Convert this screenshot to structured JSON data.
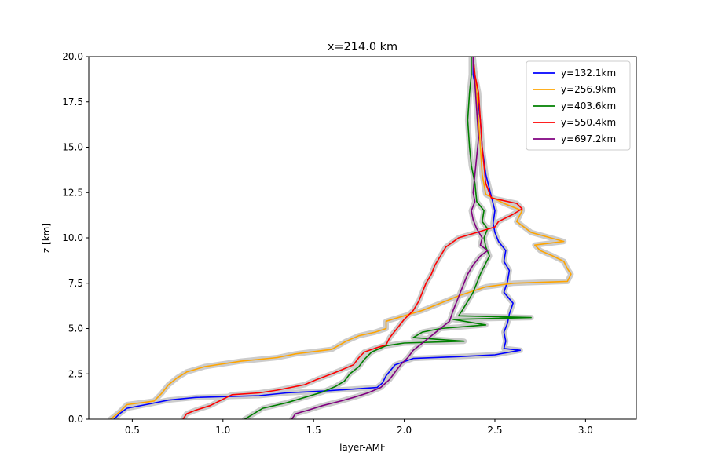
{
  "chart_data": {
    "type": "line",
    "title": "x=214.0 km",
    "xlabel": "layer-AMF",
    "ylabel": "z [km]",
    "xlim": [
      0.26,
      3.28
    ],
    "ylim": [
      0,
      20
    ],
    "xticks": [
      0.5,
      1.0,
      1.5,
      2.0,
      2.5,
      3.0
    ],
    "xtick_labels": [
      "0.5",
      "1.0",
      "1.5",
      "2.0",
      "2.5",
      "3.0"
    ],
    "yticks": [
      0,
      2.5,
      5,
      7.5,
      10,
      12.5,
      15,
      17.5,
      20
    ],
    "ytick_labels": [
      "0.0",
      "2.5",
      "5.0",
      "7.5",
      "10.0",
      "12.5",
      "15.0",
      "17.5",
      "20.0"
    ],
    "grid": false,
    "legend_position": "top-right",
    "uncertainty_band_color": "#cccccc",
    "series": [
      {
        "name": "y=132.1km",
        "color": "#0000ff",
        "points": [
          [
            0.4,
            0
          ],
          [
            0.43,
            0.3
          ],
          [
            0.47,
            0.6
          ],
          [
            0.6,
            0.85
          ],
          [
            0.7,
            1.05
          ],
          [
            0.85,
            1.2
          ],
          [
            1.2,
            1.3
          ],
          [
            1.35,
            1.45
          ],
          [
            1.55,
            1.55
          ],
          [
            1.7,
            1.65
          ],
          [
            1.85,
            1.75
          ],
          [
            1.88,
            2.0
          ],
          [
            1.9,
            2.4
          ],
          [
            1.95,
            3.0
          ],
          [
            2.05,
            3.35
          ],
          [
            2.3,
            3.45
          ],
          [
            2.5,
            3.55
          ],
          [
            2.64,
            3.8
          ],
          [
            2.55,
            3.9
          ],
          [
            2.56,
            4.3
          ],
          [
            2.55,
            4.8
          ],
          [
            2.57,
            5.3
          ],
          [
            2.58,
            5.8
          ],
          [
            2.6,
            6.4
          ],
          [
            2.55,
            7.0
          ],
          [
            2.57,
            7.6
          ],
          [
            2.58,
            8.2
          ],
          [
            2.55,
            8.7
          ],
          [
            2.56,
            9.3
          ],
          [
            2.52,
            9.8
          ],
          [
            2.5,
            10.3
          ],
          [
            2.49,
            10.8
          ],
          [
            2.5,
            11.5
          ],
          [
            2.48,
            12.3
          ],
          [
            2.45,
            13.5
          ],
          [
            2.43,
            15.0
          ],
          [
            2.42,
            16.5
          ],
          [
            2.4,
            18.0
          ],
          [
            2.38,
            19.0
          ],
          [
            2.38,
            20.0
          ]
        ]
      },
      {
        "name": "y=256.9km",
        "color": "#ffa500",
        "points": [
          [
            0.38,
            0
          ],
          [
            0.43,
            0.4
          ],
          [
            0.47,
            0.8
          ],
          [
            0.62,
            1.0
          ],
          [
            0.66,
            1.4
          ],
          [
            0.7,
            1.9
          ],
          [
            0.75,
            2.3
          ],
          [
            0.8,
            2.6
          ],
          [
            0.9,
            2.9
          ],
          [
            1.1,
            3.2
          ],
          [
            1.3,
            3.4
          ],
          [
            1.4,
            3.6
          ],
          [
            1.6,
            3.85
          ],
          [
            1.68,
            4.3
          ],
          [
            1.75,
            4.6
          ],
          [
            1.84,
            4.8
          ],
          [
            1.9,
            5.0
          ],
          [
            1.9,
            5.4
          ],
          [
            2.0,
            5.7
          ],
          [
            2.1,
            6.0
          ],
          [
            2.2,
            6.4
          ],
          [
            2.3,
            6.8
          ],
          [
            2.45,
            7.3
          ],
          [
            2.6,
            7.5
          ],
          [
            2.9,
            7.6
          ],
          [
            2.92,
            8.0
          ],
          [
            2.9,
            8.3
          ],
          [
            2.88,
            8.7
          ],
          [
            2.82,
            9.0
          ],
          [
            2.75,
            9.3
          ],
          [
            2.72,
            9.6
          ],
          [
            2.88,
            9.8
          ],
          [
            2.7,
            10.3
          ],
          [
            2.62,
            10.9
          ],
          [
            2.65,
            11.5
          ],
          [
            2.55,
            11.9
          ],
          [
            2.45,
            12.4
          ],
          [
            2.43,
            13.5
          ],
          [
            2.42,
            15.0
          ],
          [
            2.41,
            16.5
          ],
          [
            2.4,
            18.0
          ],
          [
            2.39,
            19.0
          ],
          [
            2.38,
            20.0
          ]
        ]
      },
      {
        "name": "y=403.6km",
        "color": "#008000",
        "points": [
          [
            1.12,
            0
          ],
          [
            1.17,
            0.3
          ],
          [
            1.22,
            0.6
          ],
          [
            1.35,
            0.9
          ],
          [
            1.45,
            1.2
          ],
          [
            1.55,
            1.5
          ],
          [
            1.62,
            1.8
          ],
          [
            1.67,
            2.1
          ],
          [
            1.7,
            2.5
          ],
          [
            1.75,
            2.9
          ],
          [
            1.78,
            3.3
          ],
          [
            1.82,
            3.7
          ],
          [
            1.9,
            4.05
          ],
          [
            2.0,
            4.2
          ],
          [
            2.33,
            4.3
          ],
          [
            2.05,
            4.5
          ],
          [
            2.1,
            4.8
          ],
          [
            2.2,
            5.0
          ],
          [
            2.45,
            5.2
          ],
          [
            2.27,
            5.5
          ],
          [
            2.7,
            5.6
          ],
          [
            2.3,
            5.7
          ],
          [
            2.32,
            6.0
          ],
          [
            2.35,
            6.5
          ],
          [
            2.38,
            7.0
          ],
          [
            2.4,
            7.5
          ],
          [
            2.42,
            8.0
          ],
          [
            2.45,
            8.6
          ],
          [
            2.47,
            9.0
          ],
          [
            2.45,
            9.5
          ],
          [
            2.44,
            10.0
          ],
          [
            2.46,
            10.5
          ],
          [
            2.43,
            10.9
          ],
          [
            2.44,
            11.5
          ],
          [
            2.4,
            12.0
          ],
          [
            2.39,
            13.0
          ],
          [
            2.37,
            14.0
          ],
          [
            2.36,
            15.0
          ],
          [
            2.35,
            16.5
          ],
          [
            2.36,
            18.0
          ],
          [
            2.37,
            19.0
          ],
          [
            2.37,
            20.0
          ]
        ]
      },
      {
        "name": "y=550.4km",
        "color": "#ff0000",
        "points": [
          [
            0.78,
            0
          ],
          [
            0.8,
            0.3
          ],
          [
            0.85,
            0.5
          ],
          [
            0.93,
            0.75
          ],
          [
            1.0,
            1.1
          ],
          [
            1.05,
            1.35
          ],
          [
            1.2,
            1.45
          ],
          [
            1.3,
            1.6
          ],
          [
            1.45,
            1.9
          ],
          [
            1.52,
            2.2
          ],
          [
            1.6,
            2.5
          ],
          [
            1.65,
            2.7
          ],
          [
            1.72,
            3.0
          ],
          [
            1.75,
            3.4
          ],
          [
            1.78,
            3.7
          ],
          [
            1.85,
            3.95
          ],
          [
            1.9,
            4.1
          ],
          [
            1.92,
            4.5
          ],
          [
            1.96,
            5.0
          ],
          [
            2.0,
            5.5
          ],
          [
            2.05,
            6.0
          ],
          [
            2.08,
            6.5
          ],
          [
            2.1,
            7.0
          ],
          [
            2.12,
            7.5
          ],
          [
            2.15,
            8.0
          ],
          [
            2.17,
            8.5
          ],
          [
            2.2,
            9.0
          ],
          [
            2.23,
            9.5
          ],
          [
            2.3,
            10.0
          ],
          [
            2.4,
            10.3
          ],
          [
            2.5,
            10.6
          ],
          [
            2.52,
            10.9
          ],
          [
            2.6,
            11.3
          ],
          [
            2.65,
            11.6
          ],
          [
            2.62,
            11.9
          ],
          [
            2.48,
            12.2
          ],
          [
            2.45,
            13.0
          ],
          [
            2.44,
            14.0
          ],
          [
            2.43,
            15.0
          ],
          [
            2.42,
            16.5
          ],
          [
            2.41,
            18.0
          ],
          [
            2.39,
            19.0
          ],
          [
            2.38,
            20.0
          ]
        ]
      },
      {
        "name": "y=697.2km",
        "color": "#800080",
        "points": [
          [
            1.38,
            0
          ],
          [
            1.4,
            0.3
          ],
          [
            1.47,
            0.5
          ],
          [
            1.55,
            0.75
          ],
          [
            1.65,
            1.0
          ],
          [
            1.72,
            1.2
          ],
          [
            1.8,
            1.45
          ],
          [
            1.87,
            1.75
          ],
          [
            1.92,
            2.2
          ],
          [
            1.95,
            2.6
          ],
          [
            1.98,
            3.0
          ],
          [
            2.02,
            3.4
          ],
          [
            2.05,
            3.8
          ],
          [
            2.1,
            4.2
          ],
          [
            2.15,
            4.6
          ],
          [
            2.2,
            5.0
          ],
          [
            2.25,
            5.4
          ],
          [
            2.27,
            6.0
          ],
          [
            2.29,
            6.5
          ],
          [
            2.31,
            7.0
          ],
          [
            2.33,
            7.5
          ],
          [
            2.35,
            8.0
          ],
          [
            2.38,
            8.5
          ],
          [
            2.42,
            9.0
          ],
          [
            2.46,
            9.3
          ],
          [
            2.42,
            9.6
          ],
          [
            2.43,
            10.0
          ],
          [
            2.4,
            10.5
          ],
          [
            2.38,
            11.0
          ],
          [
            2.37,
            11.5
          ],
          [
            2.39,
            12.0
          ],
          [
            2.38,
            12.5
          ],
          [
            2.39,
            13.5
          ],
          [
            2.4,
            14.5
          ],
          [
            2.41,
            15.5
          ],
          [
            2.4,
            17.0
          ],
          [
            2.39,
            18.5
          ],
          [
            2.38,
            19.5
          ],
          [
            2.38,
            20.0
          ]
        ]
      }
    ]
  }
}
